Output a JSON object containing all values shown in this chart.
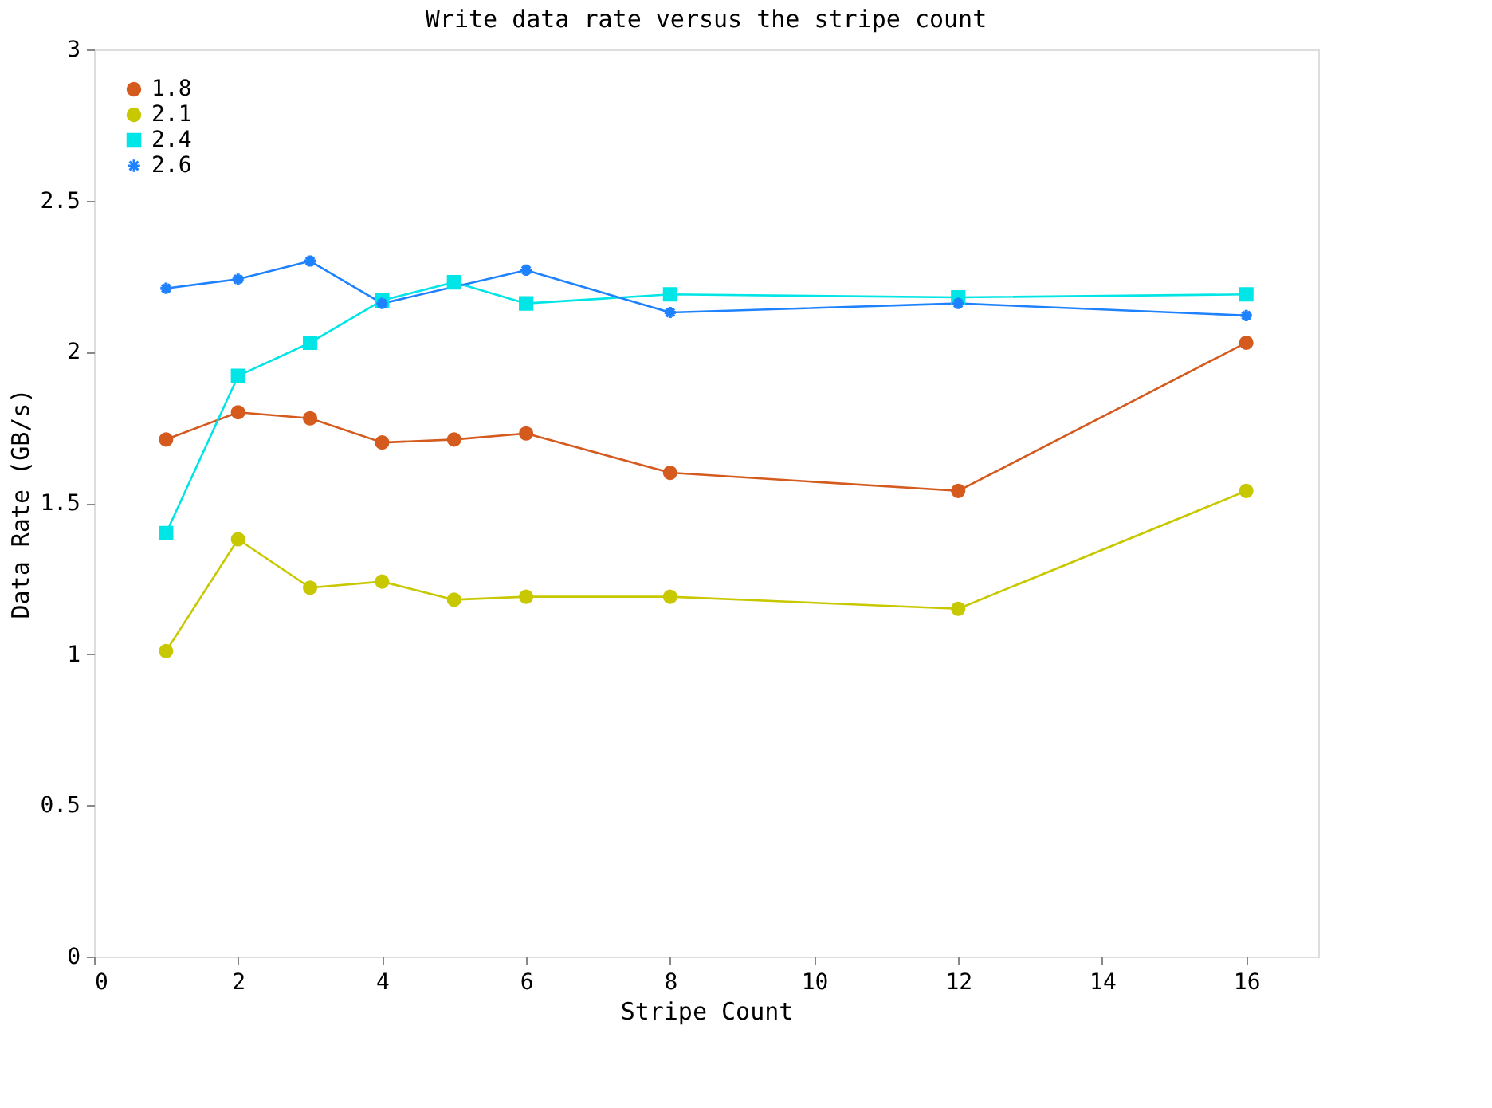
{
  "chart_data": {
    "type": "line",
    "title": "Write data rate versus the stripe count",
    "xlabel": "Stripe Count",
    "ylabel": "Data Rate (GB/s)",
    "xlim": [
      0,
      17
    ],
    "xticks": [
      0,
      2,
      4,
      6,
      8,
      10,
      12,
      14,
      16
    ],
    "ylim": [
      0,
      3
    ],
    "yticks": [
      0,
      0.5,
      1,
      1.5,
      2,
      2.5,
      3
    ],
    "grid": false,
    "legend": "top left",
    "line_style": "solid",
    "series": [
      {
        "name": "1.8",
        "color": "#d45a1e",
        "marker": "circle",
        "x": [
          1,
          2,
          3,
          4,
          5,
          6,
          8,
          12,
          16
        ],
        "values": [
          1.71,
          1.8,
          1.78,
          1.7,
          1.71,
          1.73,
          1.6,
          1.54,
          2.03
        ]
      },
      {
        "name": "2.1",
        "color": "#c8c800",
        "marker": "circle",
        "x": [
          1,
          2,
          3,
          4,
          5,
          6,
          8,
          12,
          16
        ],
        "values": [
          1.01,
          1.38,
          1.22,
          1.24,
          1.18,
          1.19,
          1.19,
          1.15,
          1.54
        ]
      },
      {
        "name": "2.4",
        "color": "#00e5e5",
        "marker": "square",
        "x": [
          1,
          2,
          3,
          4,
          5,
          6,
          8,
          12,
          16
        ],
        "values": [
          1.4,
          1.92,
          2.03,
          2.17,
          2.23,
          2.16,
          2.19,
          2.18,
          2.19
        ]
      },
      {
        "name": "2.6",
        "color": "#1e82ff",
        "marker": "cross",
        "x": [
          1,
          2,
          3,
          4,
          6,
          8,
          12,
          16
        ],
        "values": [
          2.21,
          2.24,
          2.3,
          2.16,
          2.27,
          2.13,
          2.16,
          2.12
        ]
      }
    ]
  }
}
